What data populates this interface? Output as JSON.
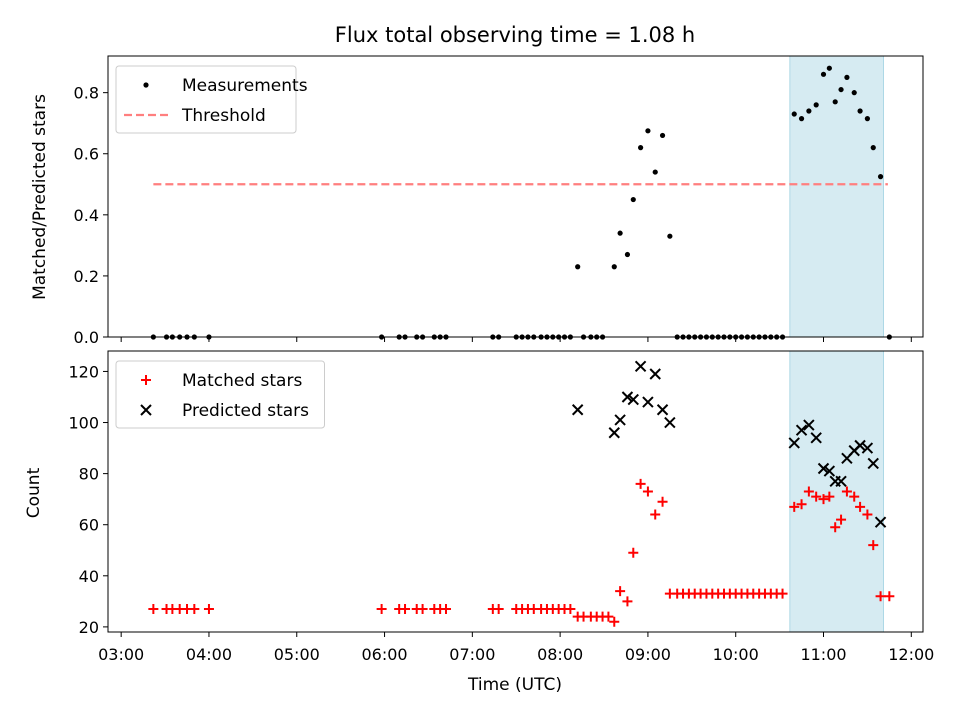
{
  "figure": {
    "title": "Flux total observing time = 1.08 h",
    "xlabel": "Time (UTC)"
  },
  "chart_data": [
    {
      "type": "scatter",
      "ylabel": "Matched/Predicted stars",
      "xlim": [
        "03:00",
        "12:00"
      ],
      "ylim": [
        0,
        0.92
      ],
      "yticks": [
        0.0,
        0.2,
        0.4,
        0.6,
        0.8
      ],
      "ytick_labels": [
        "0.0",
        "0.2",
        "0.4",
        "0.6",
        "0.8"
      ],
      "legend_position": "top-left",
      "shaded_region": {
        "start": "10:37",
        "end": "11:41",
        "color": "#add8e6"
      },
      "series": [
        {
          "name": "Measurements",
          "marker": "dot",
          "color": "#000000",
          "points": [
            [
              "03:22",
              0
            ],
            [
              "03:31",
              0
            ],
            [
              "03:35",
              0
            ],
            [
              "03:40",
              0
            ],
            [
              "03:45",
              0
            ],
            [
              "03:50",
              0
            ],
            [
              "04:00",
              0
            ],
            [
              "05:58",
              0
            ],
            [
              "06:10",
              0
            ],
            [
              "06:14",
              0
            ],
            [
              "06:22",
              0
            ],
            [
              "06:26",
              0
            ],
            [
              "06:34",
              0
            ],
            [
              "06:38",
              0
            ],
            [
              "06:42",
              0
            ],
            [
              "07:14",
              0
            ],
            [
              "07:18",
              0
            ],
            [
              "07:30",
              0
            ],
            [
              "07:34",
              0
            ],
            [
              "07:38",
              0
            ],
            [
              "07:42",
              0
            ],
            [
              "07:47",
              0
            ],
            [
              "07:51",
              0
            ],
            [
              "07:55",
              0
            ],
            [
              "07:59",
              0
            ],
            [
              "08:03",
              0
            ],
            [
              "08:07",
              0
            ],
            [
              "08:12",
              0.23
            ],
            [
              "08:16",
              0
            ],
            [
              "08:21",
              0
            ],
            [
              "08:25",
              0
            ],
            [
              "08:29",
              0
            ],
            [
              "08:37",
              0.23
            ],
            [
              "08:41",
              0.34
            ],
            [
              "08:46",
              0.27
            ],
            [
              "08:50",
              0.45
            ],
            [
              "08:55",
              0.62
            ],
            [
              "09:00",
              0.675
            ],
            [
              "09:05",
              0.54
            ],
            [
              "09:10",
              0.66
            ],
            [
              "09:15",
              0.33
            ],
            [
              "09:20",
              0
            ],
            [
              "09:24",
              0
            ],
            [
              "09:28",
              0
            ],
            [
              "09:32",
              0
            ],
            [
              "09:36",
              0
            ],
            [
              "09:40",
              0
            ],
            [
              "09:44",
              0
            ],
            [
              "09:48",
              0
            ],
            [
              "09:52",
              0
            ],
            [
              "09:56",
              0
            ],
            [
              "10:00",
              0
            ],
            [
              "10:04",
              0
            ],
            [
              "10:08",
              0
            ],
            [
              "10:12",
              0
            ],
            [
              "10:16",
              0
            ],
            [
              "10:20",
              0
            ],
            [
              "10:24",
              0
            ],
            [
              "10:28",
              0
            ],
            [
              "10:32",
              0
            ],
            [
              "10:40",
              0.73
            ],
            [
              "10:45",
              0.715
            ],
            [
              "10:50",
              0.74
            ],
            [
              "10:55",
              0.76
            ],
            [
              "11:00",
              0.86
            ],
            [
              "11:04",
              0.88
            ],
            [
              "11:08",
              0.77
            ],
            [
              "11:12",
              0.81
            ],
            [
              "11:16",
              0.85
            ],
            [
              "11:21",
              0.8
            ],
            [
              "11:25",
              0.74
            ],
            [
              "11:30",
              0.715
            ],
            [
              "11:34",
              0.62
            ],
            [
              "11:39",
              0.525
            ],
            [
              "11:45",
              0
            ]
          ]
        },
        {
          "name": "Threshold",
          "marker": "dashed-line",
          "color": "#ff7f7f",
          "points": [
            [
              "03:22",
              0.5
            ],
            [
              "11:44",
              0.5
            ]
          ]
        }
      ]
    },
    {
      "type": "scatter",
      "ylabel": "Count",
      "xlim": [
        "03:00",
        "12:00"
      ],
      "ylim": [
        18,
        128
      ],
      "yticks": [
        20,
        40,
        60,
        80,
        100,
        120
      ],
      "ytick_labels": [
        "20",
        "40",
        "60",
        "80",
        "100",
        "120"
      ],
      "xticks": [
        "03:00",
        "04:00",
        "05:00",
        "06:00",
        "07:00",
        "08:00",
        "09:00",
        "10:00",
        "11:00",
        "12:00"
      ],
      "legend_position": "top-left",
      "shaded_region": {
        "start": "10:37",
        "end": "11:41",
        "color": "#add8e6"
      },
      "series": [
        {
          "name": "Matched stars",
          "marker": "plus",
          "color": "#ff0000",
          "points": [
            [
              "03:22",
              27
            ],
            [
              "03:31",
              27
            ],
            [
              "03:35",
              27
            ],
            [
              "03:40",
              27
            ],
            [
              "03:45",
              27
            ],
            [
              "03:50",
              27
            ],
            [
              "04:00",
              27
            ],
            [
              "05:58",
              27
            ],
            [
              "06:10",
              27
            ],
            [
              "06:14",
              27
            ],
            [
              "06:22",
              27
            ],
            [
              "06:26",
              27
            ],
            [
              "06:34",
              27
            ],
            [
              "06:38",
              27
            ],
            [
              "06:42",
              27
            ],
            [
              "07:14",
              27
            ],
            [
              "07:18",
              27
            ],
            [
              "07:30",
              27
            ],
            [
              "07:34",
              27
            ],
            [
              "07:38",
              27
            ],
            [
              "07:42",
              27
            ],
            [
              "07:47",
              27
            ],
            [
              "07:51",
              27
            ],
            [
              "07:55",
              27
            ],
            [
              "07:59",
              27
            ],
            [
              "08:03",
              27
            ],
            [
              "08:07",
              27
            ],
            [
              "08:12",
              24
            ],
            [
              "08:16",
              24
            ],
            [
              "08:21",
              24
            ],
            [
              "08:25",
              24
            ],
            [
              "08:29",
              24
            ],
            [
              "08:33",
              24
            ],
            [
              "08:37",
              22
            ],
            [
              "08:41",
              34
            ],
            [
              "08:46",
              30
            ],
            [
              "08:50",
              49
            ],
            [
              "08:55",
              76
            ],
            [
              "09:00",
              73
            ],
            [
              "09:05",
              64
            ],
            [
              "09:10",
              69
            ],
            [
              "09:15",
              33
            ],
            [
              "09:20",
              33
            ],
            [
              "09:24",
              33
            ],
            [
              "09:28",
              33
            ],
            [
              "09:32",
              33
            ],
            [
              "09:36",
              33
            ],
            [
              "09:40",
              33
            ],
            [
              "09:44",
              33
            ],
            [
              "09:48",
              33
            ],
            [
              "09:52",
              33
            ],
            [
              "09:56",
              33
            ],
            [
              "10:00",
              33
            ],
            [
              "10:04",
              33
            ],
            [
              "10:08",
              33
            ],
            [
              "10:12",
              33
            ],
            [
              "10:16",
              33
            ],
            [
              "10:20",
              33
            ],
            [
              "10:24",
              33
            ],
            [
              "10:28",
              33
            ],
            [
              "10:32",
              33
            ],
            [
              "10:40",
              67
            ],
            [
              "10:45",
              68
            ],
            [
              "10:50",
              73
            ],
            [
              "10:55",
              71
            ],
            [
              "11:00",
              70
            ],
            [
              "11:04",
              71
            ],
            [
              "11:08",
              59
            ],
            [
              "11:12",
              62
            ],
            [
              "11:16",
              73
            ],
            [
              "11:21",
              71
            ],
            [
              "11:25",
              67
            ],
            [
              "11:30",
              64
            ],
            [
              "11:34",
              52
            ],
            [
              "11:39",
              32
            ],
            [
              "11:45",
              32
            ]
          ]
        },
        {
          "name": "Predicted stars",
          "marker": "x",
          "color": "#000000",
          "points": [
            [
              "08:12",
              105
            ],
            [
              "08:37",
              96
            ],
            [
              "08:41",
              101
            ],
            [
              "08:46",
              110
            ],
            [
              "08:50",
              109
            ],
            [
              "08:55",
              122
            ],
            [
              "09:00",
              108
            ],
            [
              "09:05",
              119
            ],
            [
              "09:10",
              105
            ],
            [
              "09:15",
              100
            ],
            [
              "10:40",
              92
            ],
            [
              "10:45",
              97
            ],
            [
              "10:50",
              99
            ],
            [
              "10:55",
              94
            ],
            [
              "11:00",
              82
            ],
            [
              "11:04",
              81
            ],
            [
              "11:08",
              77
            ],
            [
              "11:12",
              77
            ],
            [
              "11:16",
              86
            ],
            [
              "11:21",
              89
            ],
            [
              "11:25",
              91
            ],
            [
              "11:30",
              90
            ],
            [
              "11:34",
              84
            ],
            [
              "11:39",
              61
            ]
          ]
        }
      ]
    }
  ]
}
